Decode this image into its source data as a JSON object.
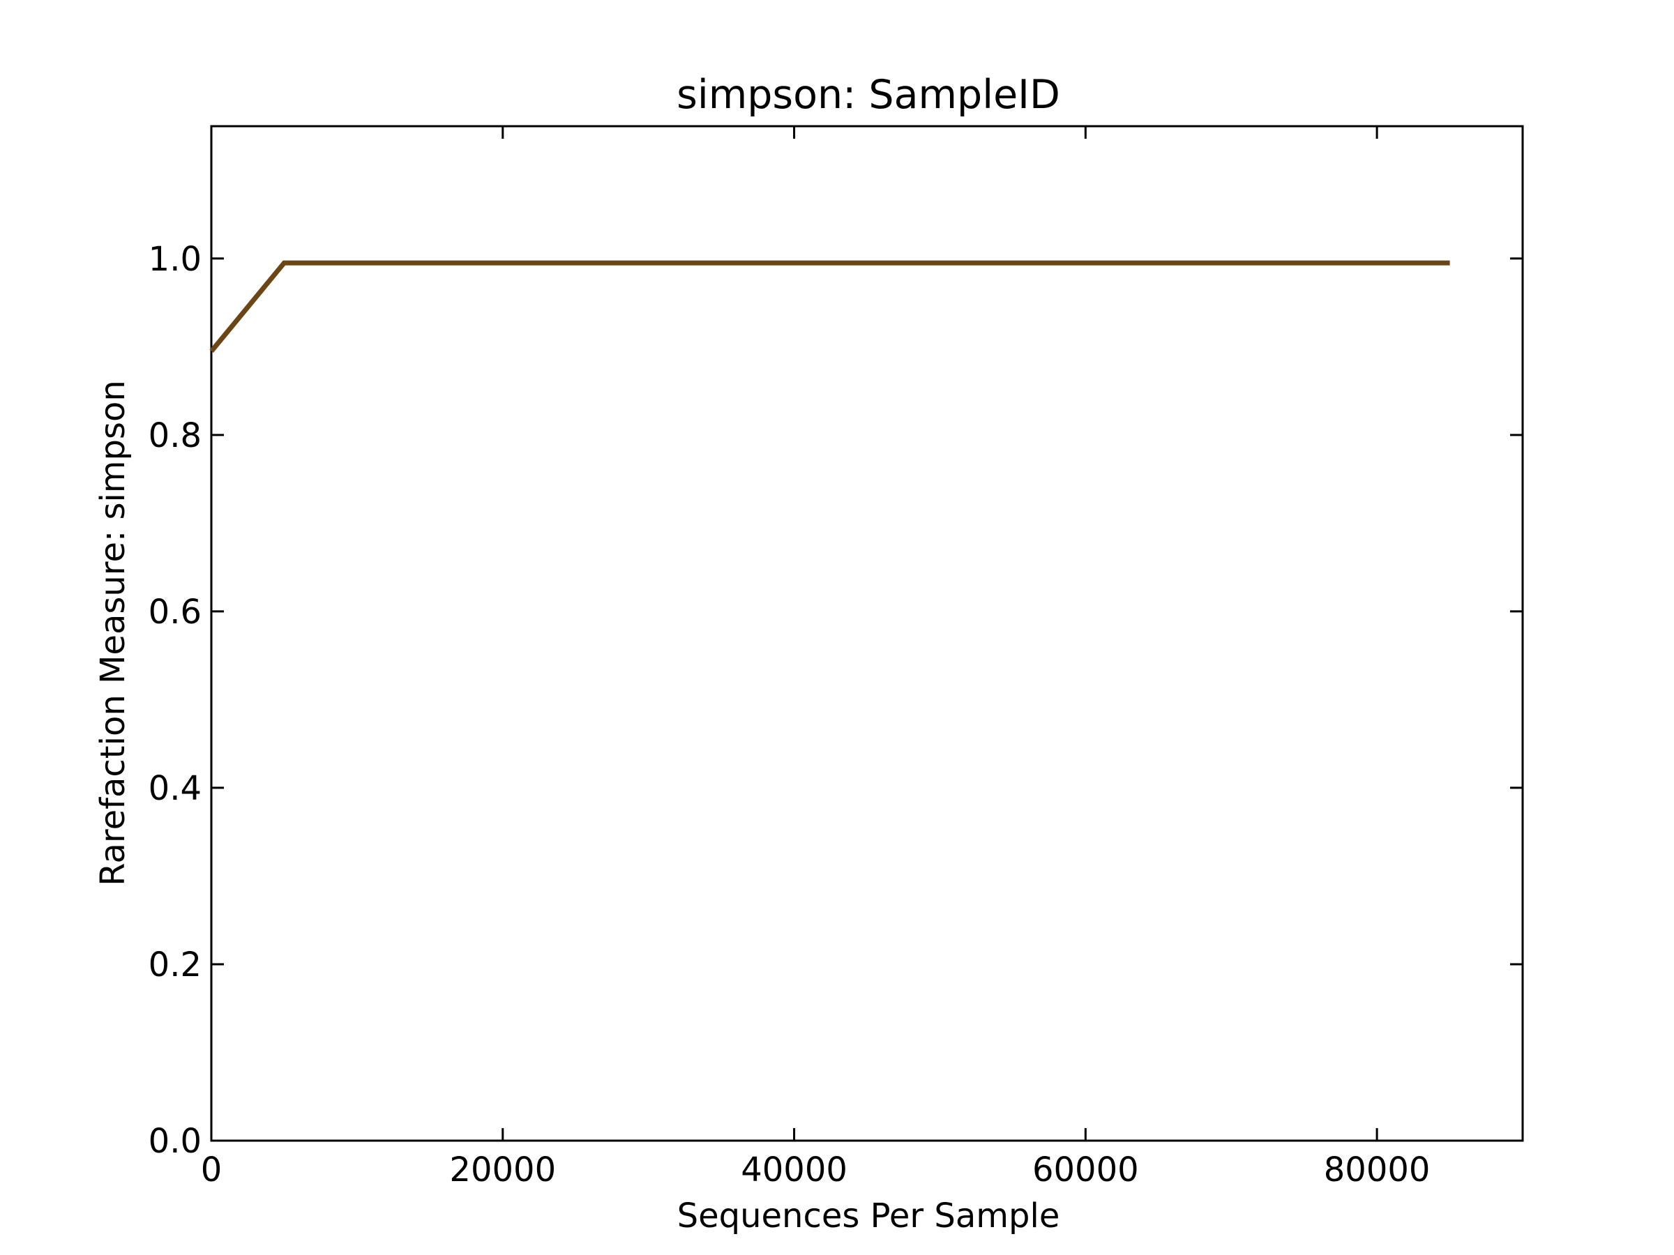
{
  "chart_data": {
    "type": "line",
    "title": "simpson: SampleID",
    "xlabel": "Sequences Per Sample",
    "ylabel": "Rarefaction Measure: simpson",
    "xlim": [
      0,
      90000
    ],
    "ylim": [
      0,
      1.15
    ],
    "x_ticks": [
      0,
      20000,
      40000,
      60000,
      80000
    ],
    "x_tick_labels": [
      "0",
      "20000",
      "40000",
      "60000",
      "80000"
    ],
    "y_ticks": [
      0.0,
      0.2,
      0.4,
      0.6,
      0.8,
      1.0
    ],
    "y_tick_labels": [
      "0.0",
      "0.2",
      "0.4",
      "0.6",
      "0.8",
      "1.0"
    ],
    "grid": false,
    "legend": "none",
    "series": [
      {
        "color": "#6b4513",
        "x": [
          10,
          5000,
          10000,
          20000,
          30000,
          40000,
          50000,
          60000,
          70000,
          80000,
          85000
        ],
        "y": [
          0.895,
          0.995,
          0.995,
          0.995,
          0.995,
          0.995,
          0.995,
          0.995,
          0.995,
          0.995,
          0.995
        ]
      }
    ]
  }
}
